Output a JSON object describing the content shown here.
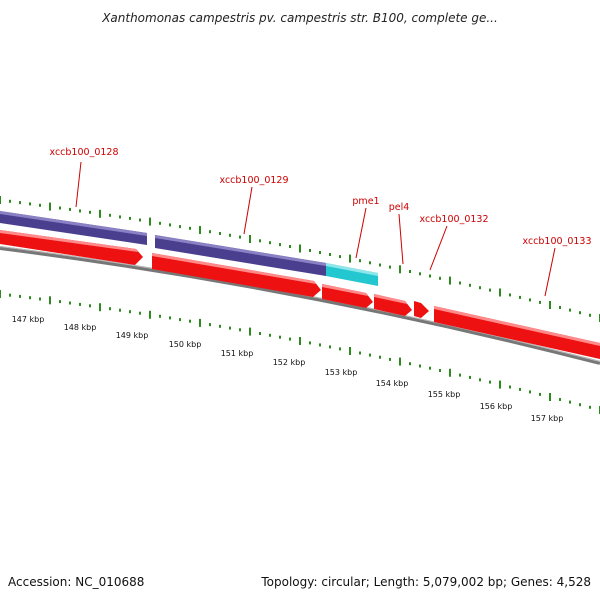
{
  "title": "Xanthomonas campestris pv. campestris str. B100, complete ge...",
  "footer": {
    "accession": "Accession: NC_010688",
    "summary": "Topology: circular; Length: 5,079,002 bp; Genes: 4,528"
  },
  "colors": {
    "backbone": "#777777",
    "forward_cds": "#4a3f8f",
    "reverse_cds": "#ee1111",
    "highlight_cds": "#22c7cf",
    "label": "#cc0000",
    "ticks": "#2d8a1e"
  },
  "gene_labels": [
    "xccb100_0128",
    "xccb100_0129",
    "pme1",
    "pel4",
    "xccb100_0132",
    "xccb100_0133"
  ],
  "kbp_labels": [
    "147 kbp",
    "148 kbp",
    "149 kbp",
    "150 kbp",
    "151 kbp",
    "152 kbp",
    "153 kbp",
    "154 kbp",
    "155 kbp",
    "156 kbp",
    "157 kbp"
  ]
}
